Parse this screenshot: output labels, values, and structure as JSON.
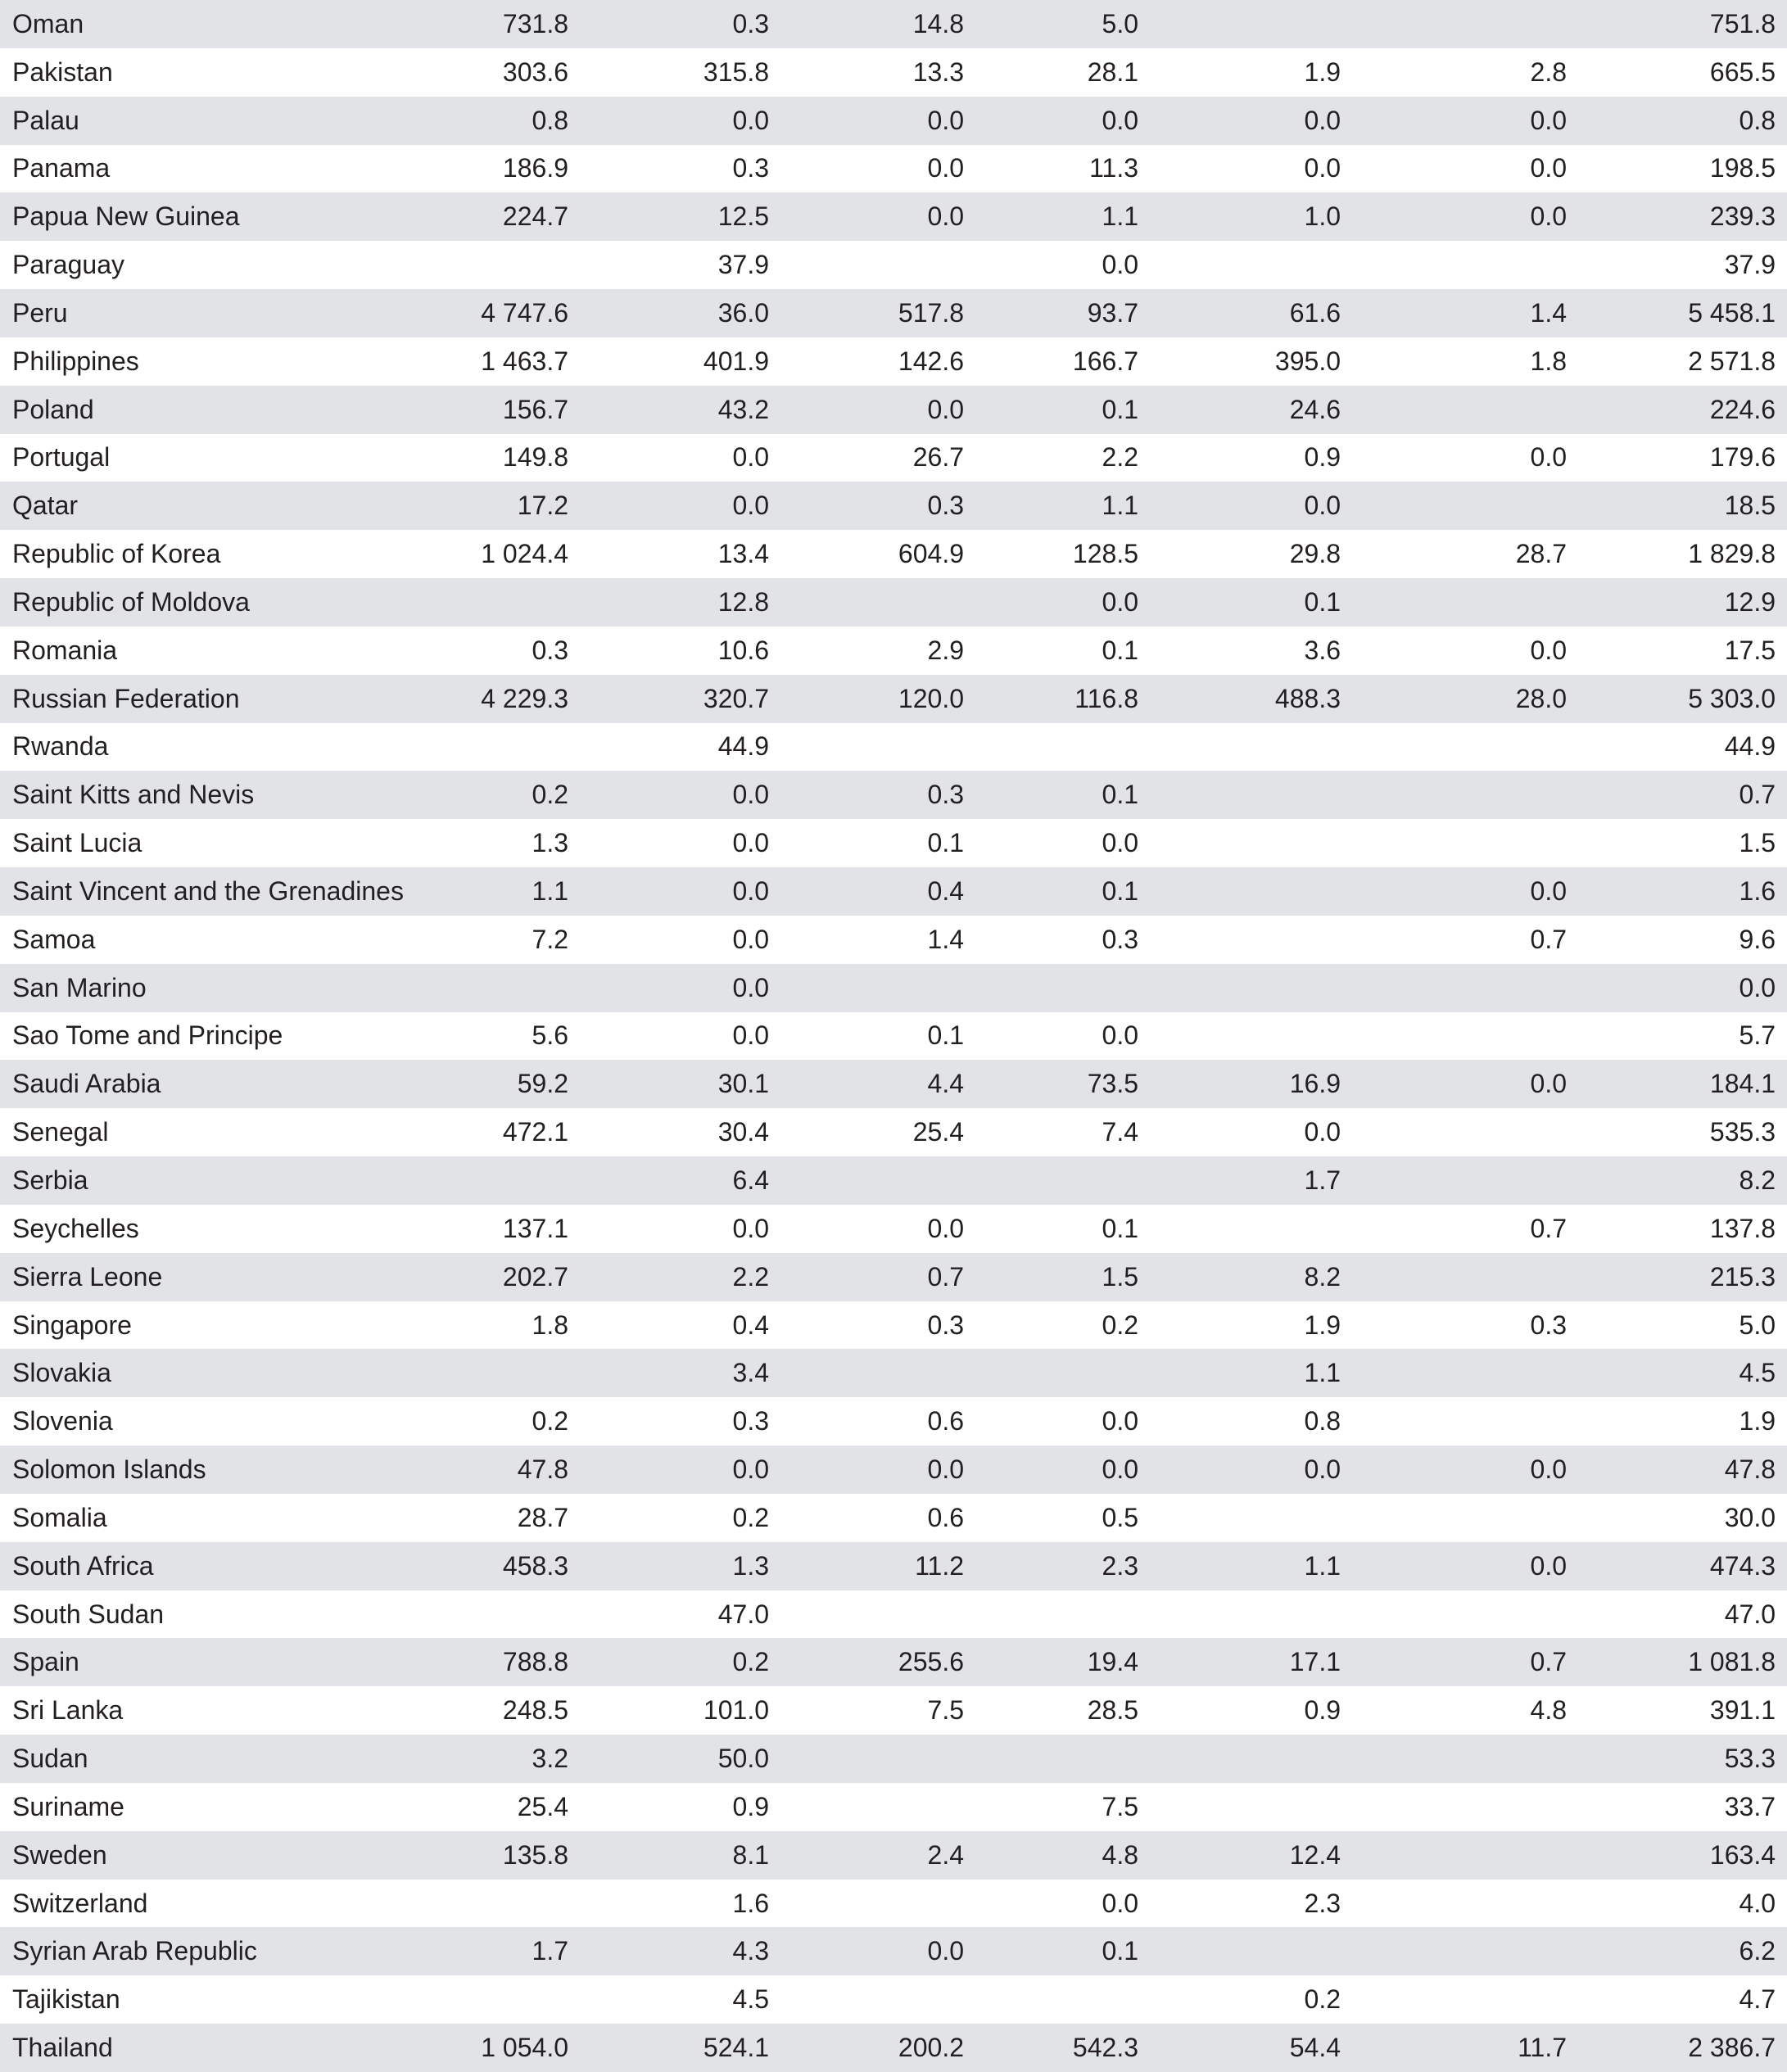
{
  "table": {
    "rows": [
      [
        "Oman",
        "731.8",
        "0.3",
        "14.8",
        "5.0",
        null,
        null,
        "751.8"
      ],
      [
        "Pakistan",
        "303.6",
        "315.8",
        "13.3",
        "28.1",
        "1.9",
        "2.8",
        "665.5"
      ],
      [
        "Palau",
        "0.8",
        "0.0",
        "0.0",
        "0.0",
        "0.0",
        "0.0",
        "0.8"
      ],
      [
        "Panama",
        "186.9",
        "0.3",
        "0.0",
        "11.3",
        "0.0",
        "0.0",
        "198.5"
      ],
      [
        "Papua New Guinea",
        "224.7",
        "12.5",
        "0.0",
        "1.1",
        "1.0",
        "0.0",
        "239.3"
      ],
      [
        "Paraguay",
        null,
        "37.9",
        null,
        "0.0",
        null,
        null,
        "37.9"
      ],
      [
        "Peru",
        "4 747.6",
        "36.0",
        "517.8",
        "93.7",
        "61.6",
        "1.4",
        "5 458.1"
      ],
      [
        "Philippines",
        "1 463.7",
        "401.9",
        "142.6",
        "166.7",
        "395.0",
        "1.8",
        "2 571.8"
      ],
      [
        "Poland",
        "156.7",
        "43.2",
        "0.0",
        "0.1",
        "24.6",
        null,
        "224.6"
      ],
      [
        "Portugal",
        "149.8",
        "0.0",
        "26.7",
        "2.2",
        "0.9",
        "0.0",
        "179.6"
      ],
      [
        "Qatar",
        "17.2",
        "0.0",
        "0.3",
        "1.1",
        "0.0",
        null,
        "18.5"
      ],
      [
        "Republic of Korea",
        "1 024.4",
        "13.4",
        "604.9",
        "128.5",
        "29.8",
        "28.7",
        "1 829.8"
      ],
      [
        "Republic of Moldova",
        null,
        "12.8",
        null,
        "0.0",
        "0.1",
        null,
        "12.9"
      ],
      [
        "Romania",
        "0.3",
        "10.6",
        "2.9",
        "0.1",
        "3.6",
        "0.0",
        "17.5"
      ],
      [
        "Russian Federation",
        "4 229.3",
        "320.7",
        "120.0",
        "116.8",
        "488.3",
        "28.0",
        "5 303.0"
      ],
      [
        "Rwanda",
        null,
        "44.9",
        null,
        null,
        null,
        null,
        "44.9"
      ],
      [
        "Saint Kitts and Nevis",
        "0.2",
        "0.0",
        "0.3",
        "0.1",
        null,
        null,
        "0.7"
      ],
      [
        "Saint Lucia",
        "1.3",
        "0.0",
        "0.1",
        "0.0",
        null,
        null,
        "1.5"
      ],
      [
        "Saint Vincent and the Grenadines",
        "1.1",
        "0.0",
        "0.4",
        "0.1",
        null,
        "0.0",
        "1.6"
      ],
      [
        "Samoa",
        "7.2",
        "0.0",
        "1.4",
        "0.3",
        null,
        "0.7",
        "9.6"
      ],
      [
        "San Marino",
        null,
        "0.0",
        null,
        null,
        null,
        null,
        "0.0"
      ],
      [
        "Sao Tome and Principe",
        "5.6",
        "0.0",
        "0.1",
        "0.0",
        null,
        null,
        "5.7"
      ],
      [
        "Saudi Arabia",
        "59.2",
        "30.1",
        "4.4",
        "73.5",
        "16.9",
        "0.0",
        "184.1"
      ],
      [
        "Senegal",
        "472.1",
        "30.4",
        "25.4",
        "7.4",
        "0.0",
        null,
        "535.3"
      ],
      [
        "Serbia",
        null,
        "6.4",
        null,
        null,
        "1.7",
        null,
        "8.2"
      ],
      [
        "Seychelles",
        "137.1",
        "0.0",
        "0.0",
        "0.1",
        null,
        "0.7",
        "137.8"
      ],
      [
        "Sierra Leone",
        "202.7",
        "2.2",
        "0.7",
        "1.5",
        "8.2",
        null,
        "215.3"
      ],
      [
        "Singapore",
        "1.8",
        "0.4",
        "0.3",
        "0.2",
        "1.9",
        "0.3",
        "5.0"
      ],
      [
        "Slovakia",
        null,
        "3.4",
        null,
        null,
        "1.1",
        null,
        "4.5"
      ],
      [
        "Slovenia",
        "0.2",
        "0.3",
        "0.6",
        "0.0",
        "0.8",
        null,
        "1.9"
      ],
      [
        "Solomon Islands",
        "47.8",
        "0.0",
        "0.0",
        "0.0",
        "0.0",
        "0.0",
        "47.8"
      ],
      [
        "Somalia",
        "28.7",
        "0.2",
        "0.6",
        "0.5",
        null,
        null,
        "30.0"
      ],
      [
        "South Africa",
        "458.3",
        "1.3",
        "11.2",
        "2.3",
        "1.1",
        "0.0",
        "474.3"
      ],
      [
        "South Sudan",
        null,
        "47.0",
        null,
        null,
        null,
        null,
        "47.0"
      ],
      [
        "Spain",
        "788.8",
        "0.2",
        "255.6",
        "19.4",
        "17.1",
        "0.7",
        "1 081.8"
      ],
      [
        "Sri Lanka",
        "248.5",
        "101.0",
        "7.5",
        "28.5",
        "0.9",
        "4.8",
        "391.1"
      ],
      [
        "Sudan",
        "3.2",
        "50.0",
        null,
        null,
        null,
        null,
        "53.3"
      ],
      [
        "Suriname",
        "25.4",
        "0.9",
        null,
        "7.5",
        null,
        null,
        "33.7"
      ],
      [
        "Sweden",
        "135.8",
        "8.1",
        "2.4",
        "4.8",
        "12.4",
        null,
        "163.4"
      ],
      [
        "Switzerland",
        null,
        "1.6",
        null,
        "0.0",
        "2.3",
        null,
        "4.0"
      ],
      [
        "Syrian Arab Republic",
        "1.7",
        "4.3",
        "0.0",
        "0.1",
        null,
        null,
        "6.2"
      ],
      [
        "Tajikistan",
        null,
        "4.5",
        null,
        null,
        "0.2",
        null,
        "4.7"
      ],
      [
        "Thailand",
        "1 054.0",
        "524.1",
        "200.2",
        "542.3",
        "54.4",
        "11.7",
        "2 386.7"
      ]
    ]
  }
}
